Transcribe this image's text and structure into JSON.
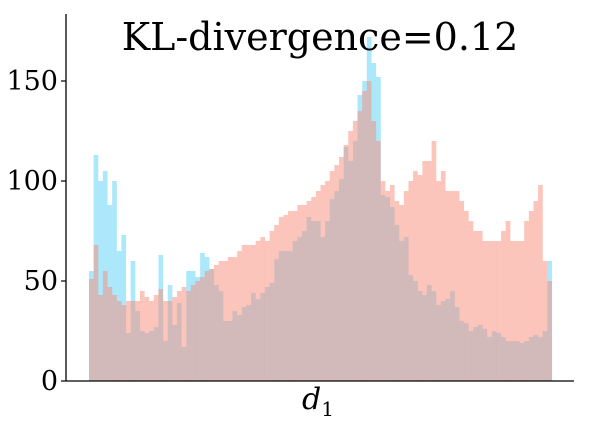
{
  "chart_data": {
    "type": "histogram",
    "title": "KL-divergence=0.12",
    "xlabel": "d",
    "xlabel_subscript": "1",
    "ylabel": "",
    "ylim": [
      0,
      180
    ],
    "yticks": [
      0,
      50,
      100,
      150
    ],
    "grid": false,
    "legend": "none",
    "bins": 100,
    "bar_alpha": 0.5,
    "series": [
      {
        "color": "#5AD2FA",
        "values": [
          55,
          113,
          100,
          105,
          88,
          100,
          65,
          73,
          24,
          60,
          35,
          25,
          24,
          25,
          27,
          63,
          20,
          48,
          28,
          39,
          17,
          55,
          55,
          52,
          64,
          62,
          56,
          48,
          45,
          30,
          30,
          35,
          33,
          37,
          38,
          44,
          41,
          44,
          47,
          49,
          61,
          65,
          65,
          65,
          70,
          72,
          75,
          82,
          80,
          80,
          72,
          80,
          91,
          95,
          101,
          117,
          110,
          120,
          143,
          150,
          172,
          159,
          152,
          93,
          92,
          87,
          78,
          70,
          72,
          53,
          50,
          45,
          43,
          48,
          45,
          38,
          40,
          41,
          45,
          37,
          30,
          29,
          25,
          27,
          28,
          26,
          22,
          25,
          24,
          22,
          20,
          20,
          20,
          19,
          20,
          22,
          23,
          22,
          25,
          60
        ]
      },
      {
        "color": "#FA8C78",
        "values": [
          51,
          68,
          43,
          55,
          47,
          43,
          40,
          38,
          40,
          40,
          40,
          45,
          42,
          40,
          43,
          46,
          40,
          40,
          42,
          45,
          47,
          45,
          48,
          50,
          52,
          55,
          56,
          58,
          60,
          60,
          62,
          62,
          65,
          68,
          68,
          68,
          70,
          72,
          70,
          75,
          78,
          82,
          83,
          85,
          85,
          88,
          88,
          90,
          92,
          95,
          98,
          100,
          105,
          108,
          112,
          118,
          125,
          130,
          135,
          145,
          150,
          130,
          120,
          100,
          95,
          98,
          90,
          88,
          95,
          100,
          105,
          103,
          110,
          110,
          120,
          100,
          105,
          95,
          95,
          95,
          90,
          85,
          80,
          75,
          75,
          70,
          70,
          70,
          70,
          75,
          80,
          70,
          70,
          70,
          80,
          85,
          90,
          98,
          60,
          50
        ]
      }
    ]
  }
}
